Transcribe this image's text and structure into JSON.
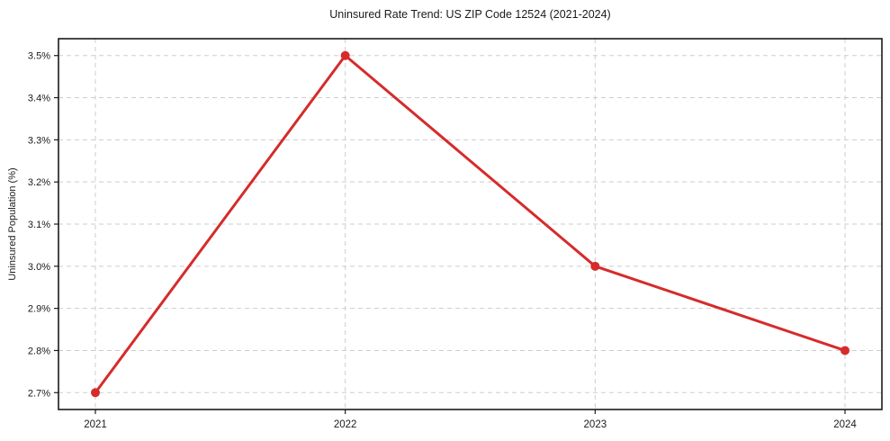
{
  "chart_data": {
    "type": "line",
    "title": "Uninsured Rate Trend: US ZIP Code 12524 (2021-2024)",
    "xlabel": "",
    "ylabel": "Uninsured Population (%)",
    "categories": [
      "2021",
      "2022",
      "2023",
      "2024"
    ],
    "series": [
      {
        "name": "Uninsured Population (%)",
        "values": [
          2.7,
          3.5,
          3.0,
          2.8
        ]
      }
    ],
    "ylim": [
      2.7,
      3.5
    ],
    "y_tick_step": 0.1,
    "y_tick_labels": [
      "2.7%",
      "2.8%",
      "2.9%",
      "3.0%",
      "3.1%",
      "3.2%",
      "3.3%",
      "3.4%",
      "3.5%"
    ],
    "grid": true,
    "legend": "none",
    "line_color": "#d62b2b",
    "grid_color": "#cdcdcd",
    "spine_color": "#1a1a1a",
    "marker": "circle"
  }
}
